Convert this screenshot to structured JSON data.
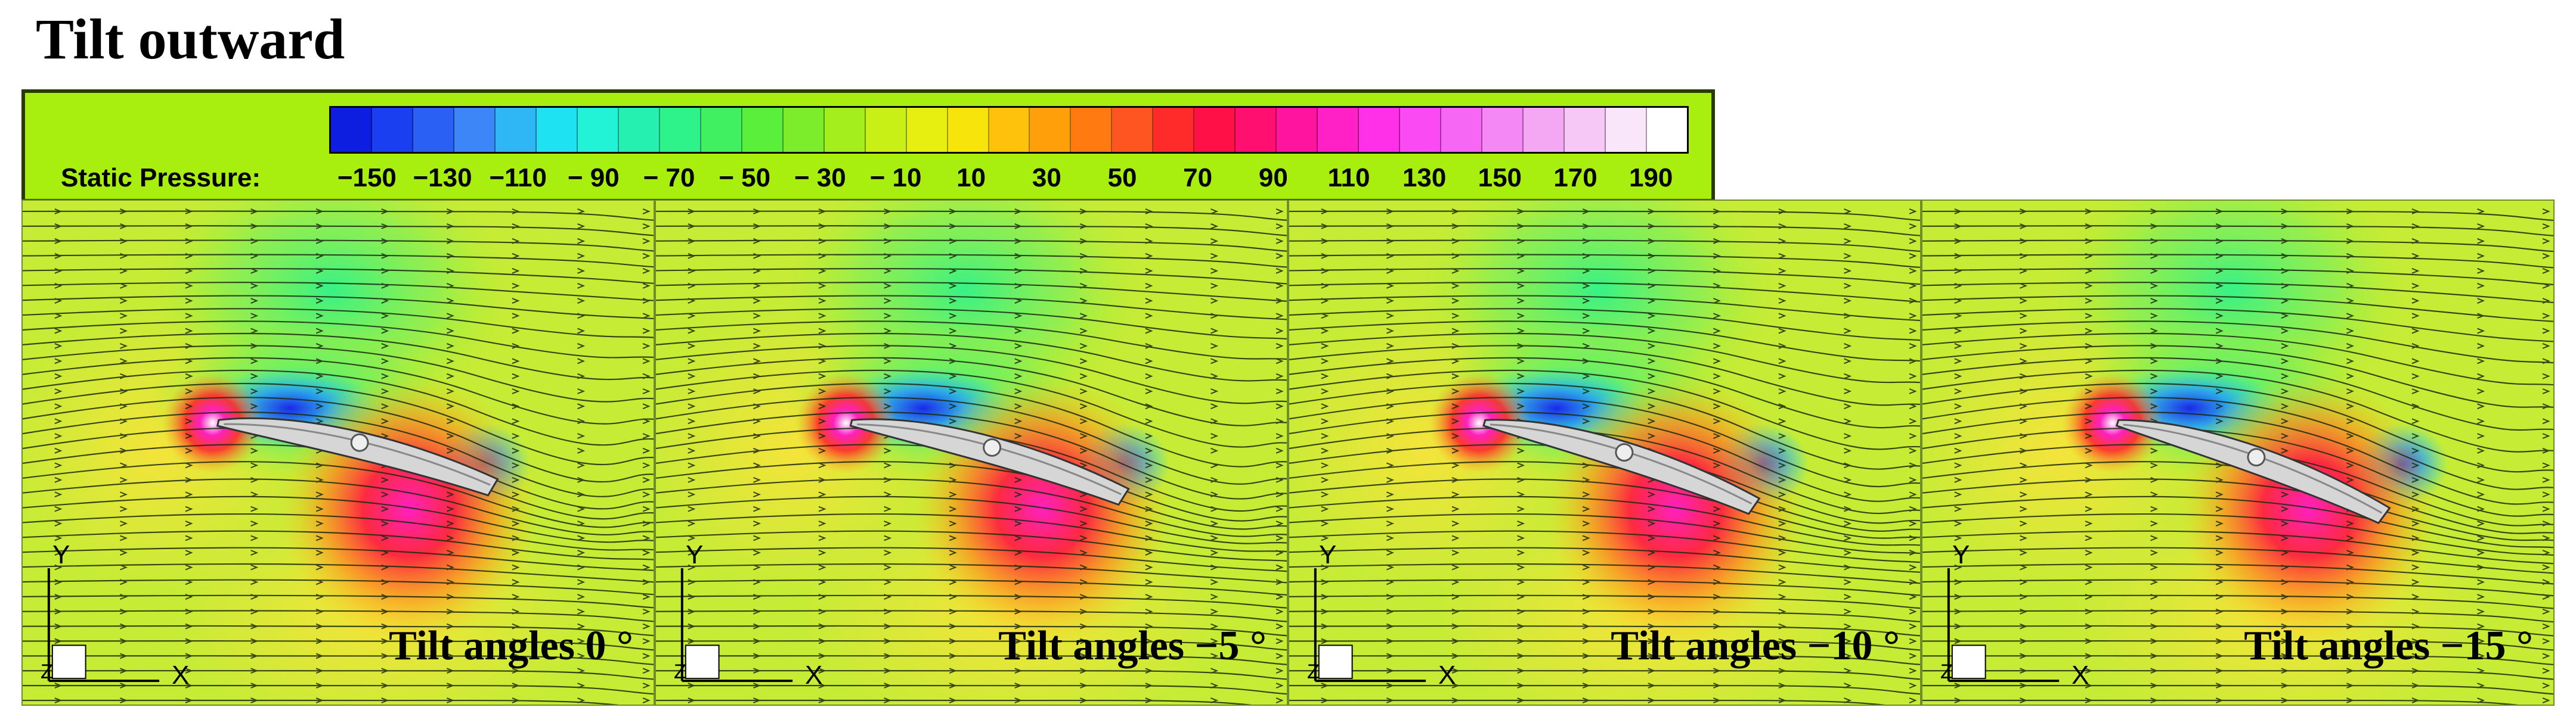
{
  "title": "Tilt outward",
  "legend": {
    "label": "Static Pressure:",
    "ticks": [
      "−150",
      "−130",
      "−110",
      "− 90",
      "− 70",
      "− 50",
      "− 30",
      "− 10",
      "10",
      "30",
      "50",
      "70",
      "90",
      "110",
      "130",
      "150",
      "170",
      "190"
    ],
    "tick_values": [
      -150,
      -130,
      -110,
      -90,
      -70,
      -50,
      -30,
      -10,
      10,
      30,
      50,
      70,
      90,
      110,
      130,
      150,
      170,
      190
    ],
    "range": [
      -160,
      200
    ],
    "colors": [
      "#0d1ee0",
      "#1a3ff0",
      "#2a60f4",
      "#3c86f8",
      "#2fb7f5",
      "#1ee2f2",
      "#22f2d6",
      "#25f0b0",
      "#2ef28a",
      "#40f060",
      "#5aef3a",
      "#7ced2a",
      "#a3ee1c",
      "#c8ef16",
      "#e6ef10",
      "#f6e40a",
      "#ffc20a",
      "#ffa00a",
      "#ff7a10",
      "#ff5520",
      "#ff2a2a",
      "#ff1046",
      "#ff1070",
      "#ff14a0",
      "#ff20c6",
      "#ff30e8",
      "#fa4af4",
      "#f668f4",
      "#f488f4",
      "#f4a8f4",
      "#f6c8f6",
      "#fae6fa",
      "#ffffff"
    ]
  },
  "axis": {
    "y": "Y",
    "x": "X",
    "z": "Z"
  },
  "panels": [
    {
      "label": "Tilt angles 0 °",
      "tilt": 0
    },
    {
      "label": "Tilt angles −5 °",
      "tilt": -5
    },
    {
      "label": "Tilt angles −10 °",
      "tilt": -10
    },
    {
      "label": "Tilt angles −15 °",
      "tilt": -15
    }
  ]
}
